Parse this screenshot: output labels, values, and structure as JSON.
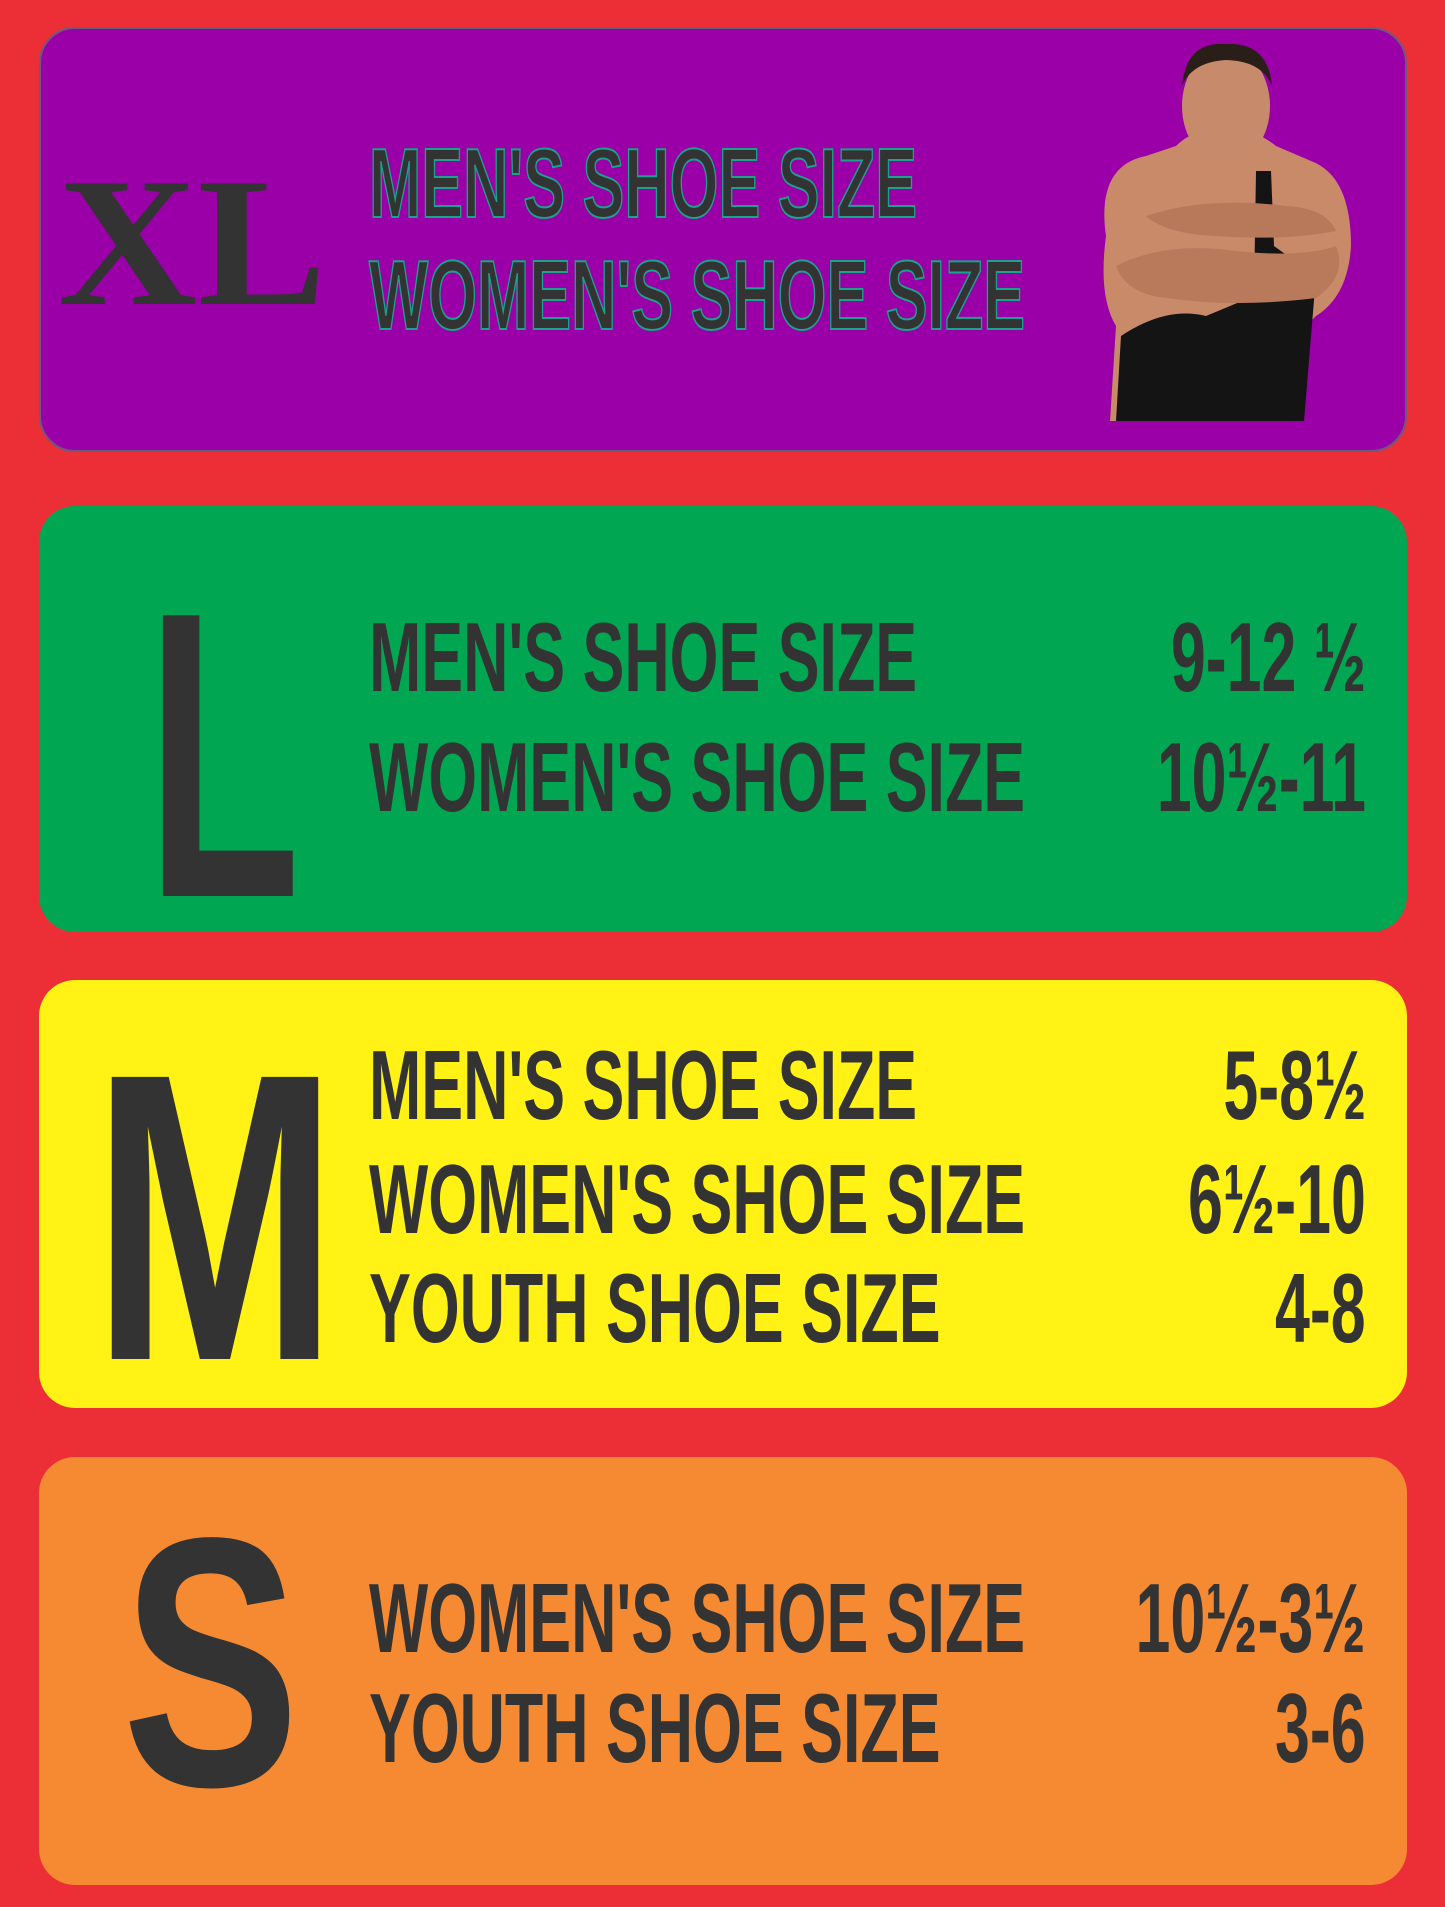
{
  "colors": {
    "background": "#ec2f36",
    "xl": "#9b00a8",
    "l": "#00a651",
    "m": "#fff214",
    "s": "#f58a32",
    "text": "#333333"
  },
  "sizes": [
    {
      "size": "XL",
      "rows": [
        {
          "label": "MEN'S SHOE SIZE",
          "value": ""
        },
        {
          "label": "WOMEN'S SHOE SIZE",
          "value": ""
        }
      ],
      "image": "wrestler-photo"
    },
    {
      "size": "L",
      "rows": [
        {
          "label": "MEN'S SHOE SIZE",
          "value": "9-12 ½"
        },
        {
          "label": "WOMEN'S SHOE SIZE",
          "value": "10½-11"
        }
      ]
    },
    {
      "size": "M",
      "rows": [
        {
          "label": "MEN'S SHOE SIZE",
          "value": "5-8½"
        },
        {
          "label": "WOMEN'S SHOE SIZE",
          "value": "6½-10"
        },
        {
          "label": "YOUTH SHOE SIZE",
          "value": "4-8"
        }
      ]
    },
    {
      "size": "S",
      "rows": [
        {
          "label": "WOMEN'S SHOE SIZE",
          "value": "10½-3½"
        },
        {
          "label": "YOUTH SHOE SIZE",
          "value": "3-6"
        }
      ]
    }
  ]
}
